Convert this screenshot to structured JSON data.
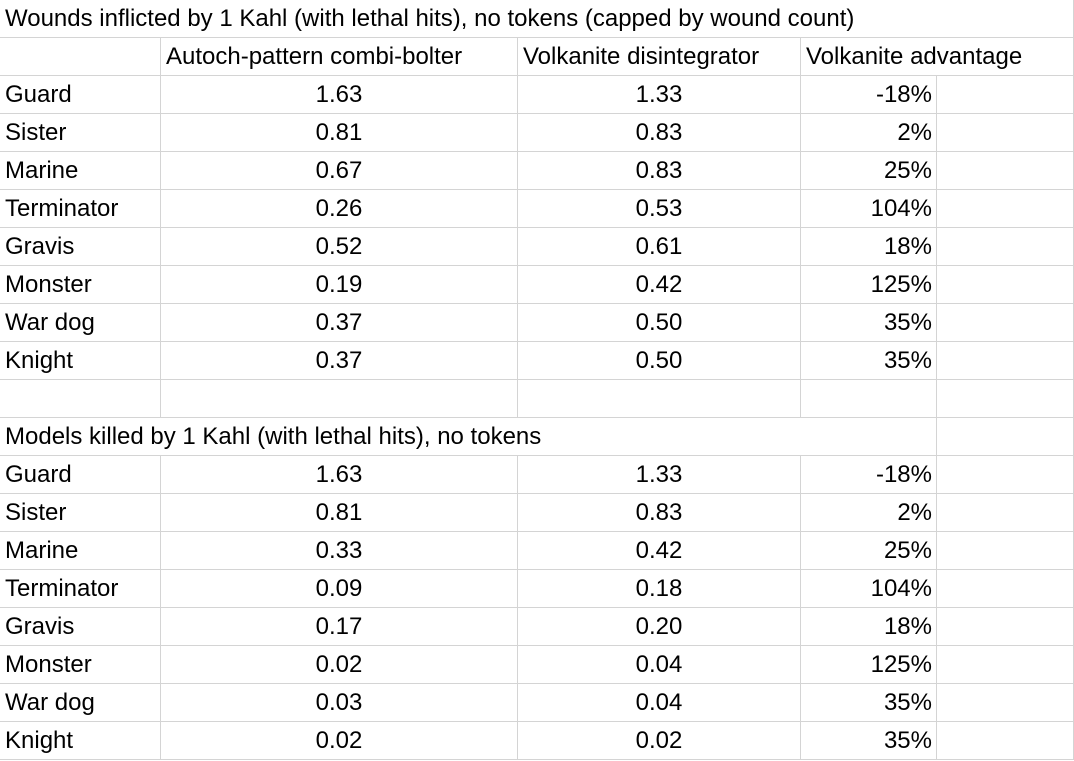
{
  "table1": {
    "title": "Wounds inflicted by 1 Kahl (with lethal hits), no tokens (capped by wound count)",
    "headers": [
      "",
      "Autoch-pattern combi-bolter",
      "Volkanite disintegrator",
      "Volkanite advantage",
      ""
    ],
    "rows": [
      {
        "label": "Guard",
        "bolter": "1.63",
        "volkanite": "1.33",
        "advantage": "-18%"
      },
      {
        "label": "Sister",
        "bolter": "0.81",
        "volkanite": "0.83",
        "advantage": "2%"
      },
      {
        "label": "Marine",
        "bolter": "0.67",
        "volkanite": "0.83",
        "advantage": "25%"
      },
      {
        "label": "Terminator",
        "bolter": "0.26",
        "volkanite": "0.53",
        "advantage": "104%"
      },
      {
        "label": "Gravis",
        "bolter": "0.52",
        "volkanite": "0.61",
        "advantage": "18%"
      },
      {
        "label": "Monster",
        "bolter": "0.19",
        "volkanite": "0.42",
        "advantage": "125%"
      },
      {
        "label": "War dog",
        "bolter": "0.37",
        "volkanite": "0.50",
        "advantage": "35%"
      },
      {
        "label": "Knight",
        "bolter": "0.37",
        "volkanite": "0.50",
        "advantage": "35%"
      }
    ]
  },
  "table2": {
    "title": "Models killed by 1 Kahl (with lethal hits), no tokens",
    "rows": [
      {
        "label": "Guard",
        "bolter": "1.63",
        "volkanite": "1.33",
        "advantage": "-18%"
      },
      {
        "label": "Sister",
        "bolter": "0.81",
        "volkanite": "0.83",
        "advantage": "2%"
      },
      {
        "label": "Marine",
        "bolter": "0.33",
        "volkanite": "0.42",
        "advantage": "25%"
      },
      {
        "label": "Terminator",
        "bolter": "0.09",
        "volkanite": "0.18",
        "advantage": "104%"
      },
      {
        "label": "Gravis",
        "bolter": "0.17",
        "volkanite": "0.20",
        "advantage": "18%"
      },
      {
        "label": "Monster",
        "bolter": "0.02",
        "volkanite": "0.04",
        "advantage": "125%"
      },
      {
        "label": "War dog",
        "bolter": "0.03",
        "volkanite": "0.04",
        "advantage": "35%"
      },
      {
        "label": "Knight",
        "bolter": "0.02",
        "volkanite": "0.02",
        "advantage": "35%"
      }
    ]
  }
}
